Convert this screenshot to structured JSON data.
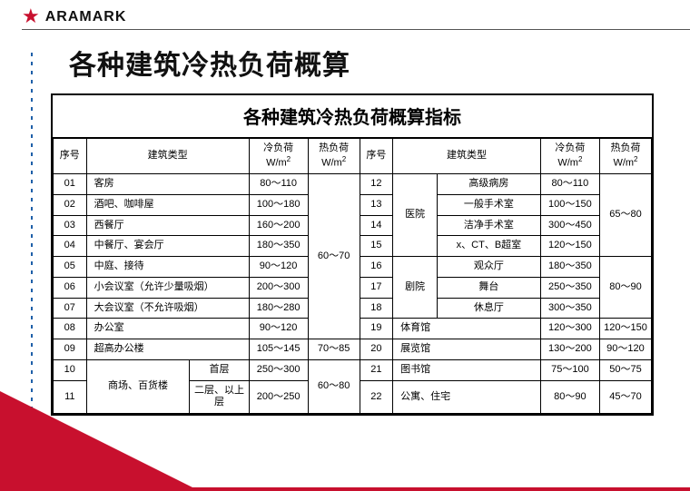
{
  "logo": {
    "brand": "ARAMARK",
    "icon_name": "star-icon",
    "icon_color": "#c8102e"
  },
  "page_title": "各种建筑冷热负荷概算",
  "table": {
    "title": "各种建筑冷热负荷概算指标",
    "headers": {
      "seq": "序号",
      "type": "建筑类型",
      "cold": "冷负荷",
      "cold_unit": "W/m",
      "hot": "热负荷",
      "hot_unit": "W/m"
    },
    "hot_merge_1_8": "60～70",
    "hot_row9": "70～85",
    "hot_merge_10_11": "60～80",
    "right_cat_1": "医院",
    "right_cat_2": "剧院",
    "right_hot_1_4": "65～80",
    "right_hot_5_7": "80～90",
    "left_rows": [
      {
        "seq": "01",
        "type": "客房",
        "cold": "80～110"
      },
      {
        "seq": "02",
        "type": "酒吧、咖啡屋",
        "cold": "100～180"
      },
      {
        "seq": "03",
        "type": "西餐厅",
        "cold": "160～200"
      },
      {
        "seq": "04",
        "type": "中餐厅、宴会厅",
        "cold": "180～350"
      },
      {
        "seq": "05",
        "type": "中庭、接待",
        "cold": "90～120"
      },
      {
        "seq": "06",
        "type": "小会议室（允许少量吸烟）",
        "cold": "200～300"
      },
      {
        "seq": "07",
        "type": "大会议室（不允许吸烟）",
        "cold": "180～280"
      },
      {
        "seq": "08",
        "type": "办公室",
        "cold": "90～120"
      },
      {
        "seq": "09",
        "type": "超高办公楼",
        "cold": "105～145"
      }
    ],
    "left_merge": {
      "cat": "商场、百货楼",
      "r1": {
        "seq": "10",
        "sub": "首层",
        "cold": "250～300"
      },
      "r2": {
        "seq": "11",
        "sub": "二层、以上层",
        "cold": "200～250"
      }
    },
    "right_rows_med": [
      {
        "seq": "12",
        "sub": "高级病房",
        "cold": "80～110"
      },
      {
        "seq": "13",
        "sub": "一般手术室",
        "cold": "100～150"
      },
      {
        "seq": "14",
        "sub": "洁净手术室",
        "cold": "300～450"
      },
      {
        "seq": "15",
        "sub": "x、CT、B超室",
        "cold": "120～150"
      }
    ],
    "right_rows_theater": [
      {
        "seq": "16",
        "sub": "观众厅",
        "cold": "180～350"
      },
      {
        "seq": "17",
        "sub": "舞台",
        "cold": "250～350"
      },
      {
        "seq": "18",
        "sub": "休息厅",
        "cold": "300～350"
      }
    ],
    "right_rows_plain": [
      {
        "seq": "19",
        "type": "体育馆",
        "cold": "120～300",
        "hot": "120～150"
      },
      {
        "seq": "20",
        "type": "展览馆",
        "cold": "130～200",
        "hot": "90～120"
      },
      {
        "seq": "21",
        "type": "图书馆",
        "cold": "75～100",
        "hot": "50～75"
      },
      {
        "seq": "22",
        "type": "公寓、住宅",
        "cold": "80～90",
        "hot": "45～70"
      }
    ]
  },
  "colors": {
    "brand": "#c8102e",
    "accent_blue": "#1e5fa8",
    "border": "#000000",
    "bg": "#ffffff"
  }
}
